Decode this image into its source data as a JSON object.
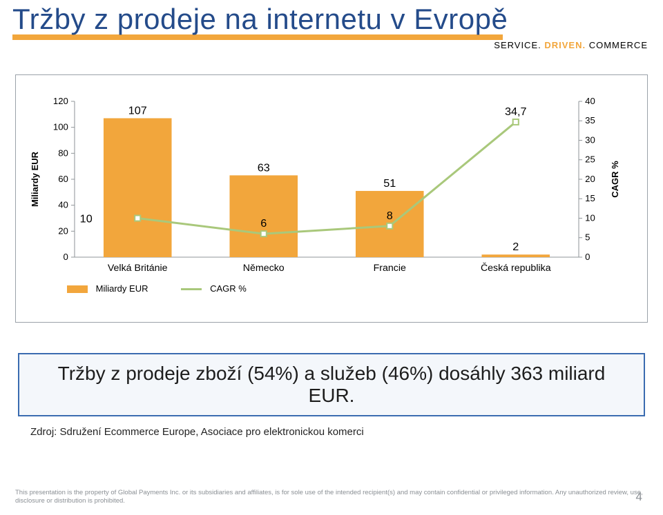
{
  "header": {
    "title": "Tržby z prodeje na internetu v Evropě",
    "tagline_service": "SERVICE.",
    "tagline_driven": "DRIVEN.",
    "tagline_commerce": "COMMERCE",
    "title_color": "#244b8a",
    "underline_color": "#f2a63c"
  },
  "chart": {
    "type": "bar+line",
    "categories": [
      "Velká Británie",
      "Německo",
      "Francie",
      "Česká republika"
    ],
    "bar_series": {
      "name": "Miliardy EUR",
      "color": "#f2a63c",
      "values": [
        107,
        63,
        51,
        2
      ]
    },
    "line_series": {
      "name": "CAGR %",
      "color": "#a9c87b",
      "line_width": 3,
      "values": [
        10,
        6,
        8,
        34.7
      ],
      "value_labels": [
        "10",
        "6",
        "8",
        "34,7"
      ]
    },
    "y_left": {
      "label": "Miliardy EUR",
      "ticks": [
        0,
        20,
        40,
        60,
        80,
        100,
        120
      ],
      "min": 0,
      "max": 120,
      "font_size": 13,
      "label_rotation": -90
    },
    "y_right": {
      "label": "CAGR %",
      "ticks": [
        0,
        5,
        10,
        15,
        20,
        25,
        30,
        35,
        40
      ],
      "min": 0,
      "max": 40,
      "font_size": 13,
      "label_rotation": -90
    },
    "data_label_fontsize": 16,
    "data_label_color": "#000000",
    "category_fontsize": 14,
    "axis_line_color": "#8f9498",
    "grid_on": false,
    "background_color": "#ffffff",
    "bar_width": 0.54
  },
  "legend": {
    "bar_label": "Miliardy EUR",
    "line_label": "CAGR %"
  },
  "callout": {
    "text": "Tržby z prodeje zboží (54%) a služeb (46%) dosáhly 363 miliard EUR.",
    "border_color": "#3a6bb0",
    "bg_color": "#f4f7fb",
    "font_size": 28
  },
  "source": "Zdroj: Sdružení Ecommerce Europe, Asociace pro elektronickou komerci",
  "footer": {
    "disclaimer": "This presentation is the property of Global Payments Inc. or its subsidiaries and affiliates, is for sole use of the intended recipient(s) and may contain confidential or privileged information. Any unauthorized review, use, disclosure or distribution is prohibited.",
    "page": "4"
  }
}
